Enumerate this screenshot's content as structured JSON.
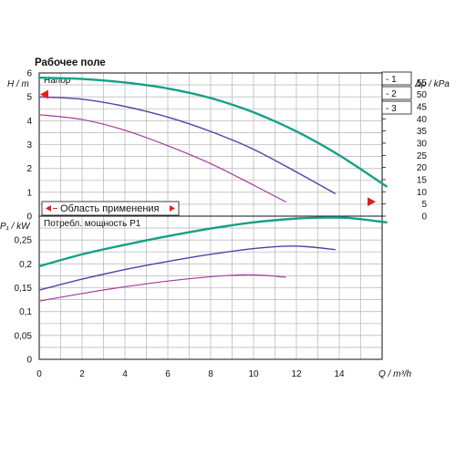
{
  "chart_data": {
    "type": "line",
    "title": "Рабочее поле",
    "xlabel": "Q / m³/h",
    "x_ticks": [
      "0",
      "2",
      "4",
      "6",
      "8",
      "10",
      "12",
      "14"
    ],
    "xlim": [
      0,
      16
    ],
    "legend": {
      "placement": "top-right",
      "entries": [
        "- 1",
        "- 2",
        "- 3"
      ]
    },
    "colors": {
      "curve_1": "#16a085",
      "curve_2": "#5b3ea6",
      "curve_3": "#a23a9e",
      "marker": "#e02020",
      "range_text": "#e02020"
    },
    "top_panel": {
      "label": "Напор",
      "ylabel_left": "H / m",
      "ylabel_right": "Δp / kPa",
      "y_ticks_left": [
        "0",
        "1",
        "2",
        "3",
        "4",
        "5",
        "6"
      ],
      "ylim_left": [
        0,
        6
      ],
      "y_ticks_right": [
        "0",
        "5",
        "10",
        "15",
        "20",
        "25",
        "30",
        "35",
        "40",
        "45",
        "50",
        "55"
      ],
      "application_range_label": "Область применения",
      "markers": {
        "left_H": 5.1,
        "right_H": 0.6
      },
      "series": [
        {
          "name": "- 1",
          "x": [
            0,
            2,
            4,
            6,
            8,
            10,
            12,
            14,
            16.2
          ],
          "y": [
            5.8,
            5.75,
            5.6,
            5.35,
            4.95,
            4.35,
            3.55,
            2.55,
            1.25
          ]
        },
        {
          "name": "- 2",
          "x": [
            0,
            2,
            4,
            6,
            8,
            10,
            12,
            13.8
          ],
          "y": [
            5.0,
            4.9,
            4.6,
            4.15,
            3.55,
            2.8,
            1.85,
            0.95
          ]
        },
        {
          "name": "- 3",
          "x": [
            0,
            2,
            4,
            6,
            8,
            10,
            11.5
          ],
          "y": [
            4.25,
            4.05,
            3.6,
            2.95,
            2.2,
            1.3,
            0.6
          ]
        }
      ]
    },
    "bottom_panel": {
      "label": "Потребл. мощность P1",
      "ylabel_left": "P₁ / kW",
      "y_ticks_left": [
        "0",
        "0,05",
        "0,1",
        "0,15",
        "0,2",
        "0,25"
      ],
      "ylim": [
        0,
        0.3
      ],
      "series": [
        {
          "name": "- 1",
          "x": [
            0,
            2,
            4,
            6,
            8,
            10,
            12,
            13.5,
            14.5,
            16.2
          ],
          "y": [
            0.195,
            0.22,
            0.24,
            0.258,
            0.274,
            0.287,
            0.295,
            0.297,
            0.296,
            0.287
          ]
        },
        {
          "name": "- 2",
          "x": [
            0,
            2,
            4,
            6,
            8,
            10,
            11.5,
            12.5,
            13.8
          ],
          "y": [
            0.145,
            0.168,
            0.188,
            0.205,
            0.22,
            0.232,
            0.237,
            0.236,
            0.23
          ]
        },
        {
          "name": "- 3",
          "x": [
            0,
            2,
            4,
            6,
            8,
            9.5,
            10.5,
            11.5
          ],
          "y": [
            0.122,
            0.138,
            0.152,
            0.164,
            0.173,
            0.177,
            0.176,
            0.172
          ]
        }
      ]
    }
  }
}
